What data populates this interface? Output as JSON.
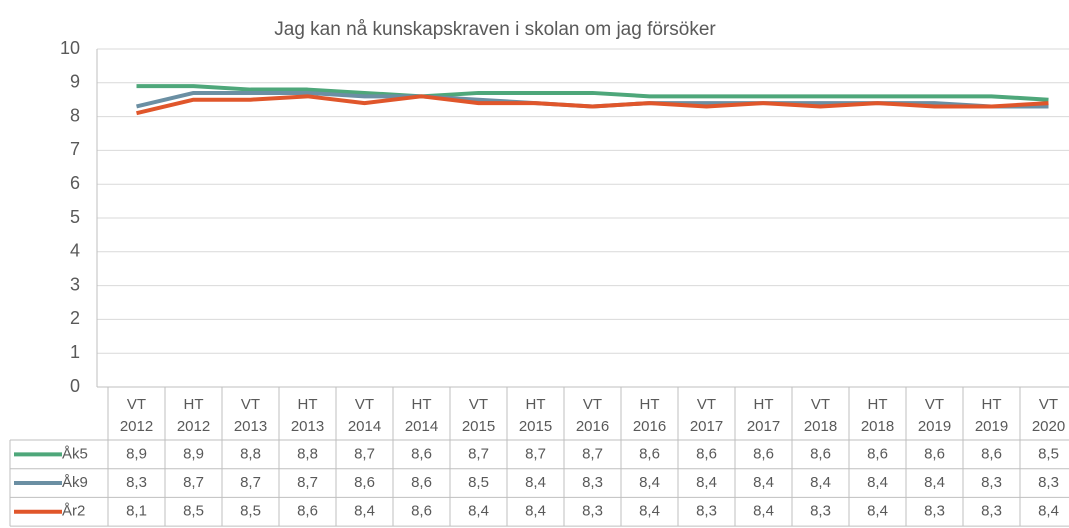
{
  "chart_data": {
    "type": "line",
    "title": "Jag kan nå kunskapskraven i skolan om jag försöker",
    "categories": [
      "VT 2012",
      "HT 2012",
      "VT 2013",
      "HT 2013",
      "VT 2014",
      "HT 2014",
      "VT 2015",
      "HT 2015",
      "VT 2016",
      "HT 2016",
      "VT 2017",
      "HT 2017",
      "VT 2018",
      "HT 2018",
      "VT 2019",
      "HT 2019",
      "VT 2020"
    ],
    "series": [
      {
        "name": "Åk5",
        "color": "#4ea77a",
        "values": [
          8.9,
          8.9,
          8.8,
          8.8,
          8.7,
          8.6,
          8.7,
          8.7,
          8.7,
          8.6,
          8.6,
          8.6,
          8.6,
          8.6,
          8.6,
          8.6,
          8.5
        ],
        "value_labels": [
          "8,9",
          "8,9",
          "8,8",
          "8,8",
          "8,7",
          "8,6",
          "8,7",
          "8,7",
          "8,7",
          "8,6",
          "8,6",
          "8,6",
          "8,6",
          "8,6",
          "8,6",
          "8,6",
          "8,5"
        ]
      },
      {
        "name": "Åk9",
        "color": "#6b8fa3",
        "values": [
          8.3,
          8.7,
          8.7,
          8.7,
          8.6,
          8.6,
          8.5,
          8.4,
          8.3,
          8.4,
          8.4,
          8.4,
          8.4,
          8.4,
          8.4,
          8.3,
          8.3
        ],
        "value_labels": [
          "8,3",
          "8,7",
          "8,7",
          "8,7",
          "8,6",
          "8,6",
          "8,5",
          "8,4",
          "8,3",
          "8,4",
          "8,4",
          "8,4",
          "8,4",
          "8,4",
          "8,4",
          "8,3",
          "8,3"
        ]
      },
      {
        "name": "År2",
        "color": "#e0562b",
        "values": [
          8.1,
          8.5,
          8.5,
          8.6,
          8.4,
          8.6,
          8.4,
          8.4,
          8.3,
          8.4,
          8.3,
          8.4,
          8.3,
          8.4,
          8.3,
          8.3,
          8.4
        ],
        "value_labels": [
          "8,1",
          "8,5",
          "8,5",
          "8,6",
          "8,4",
          "8,6",
          "8,4",
          "8,4",
          "8,3",
          "8,4",
          "8,3",
          "8,4",
          "8,3",
          "8,4",
          "8,3",
          "8,3",
          "8,4"
        ]
      }
    ],
    "ylim": [
      0,
      10
    ],
    "yticks": [
      0,
      1,
      2,
      3,
      4,
      5,
      6,
      7,
      8,
      9,
      10
    ],
    "grid": true
  }
}
